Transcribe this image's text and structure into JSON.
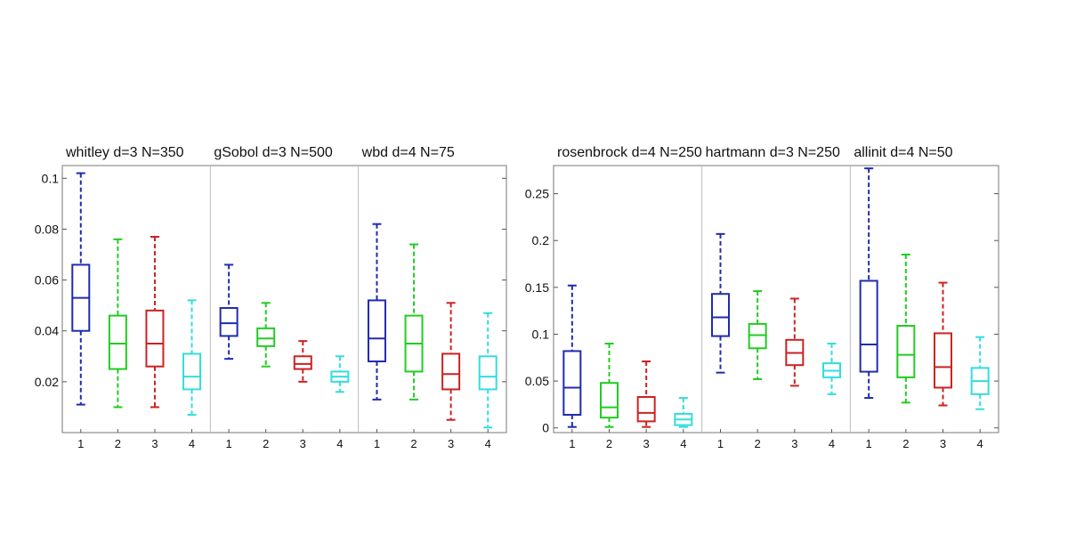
{
  "chart_data": [
    {
      "type": "boxplot",
      "ylim": [
        0,
        0.105
      ],
      "yticks": [
        "0.02",
        "0.04",
        "0.06",
        "0.08",
        "0.1"
      ],
      "yticks_values": [
        0.02,
        0.04,
        0.06,
        0.08,
        0.1
      ],
      "categories": [
        "1",
        "2",
        "3",
        "4"
      ],
      "colors": [
        "#1f2bb0",
        "#22cc22",
        "#cc2222",
        "#33dddd"
      ],
      "panels": [
        {
          "title": "whitley d=3 N=350",
          "boxes": [
            {
              "min": 0.011,
              "q1": 0.04,
              "median": 0.053,
              "q3": 0.066,
              "max": 0.102
            },
            {
              "min": 0.01,
              "q1": 0.025,
              "median": 0.035,
              "q3": 0.046,
              "max": 0.076
            },
            {
              "min": 0.01,
              "q1": 0.026,
              "median": 0.035,
              "q3": 0.048,
              "max": 0.077
            },
            {
              "min": 0.007,
              "q1": 0.017,
              "median": 0.022,
              "q3": 0.031,
              "max": 0.052
            }
          ]
        },
        {
          "title": "gSobol d=3 N=500",
          "boxes": [
            {
              "min": 0.029,
              "q1": 0.038,
              "median": 0.043,
              "q3": 0.049,
              "max": 0.066
            },
            {
              "min": 0.026,
              "q1": 0.034,
              "median": 0.037,
              "q3": 0.041,
              "max": 0.051
            },
            {
              "min": 0.02,
              "q1": 0.025,
              "median": 0.027,
              "q3": 0.03,
              "max": 0.036
            },
            {
              "min": 0.016,
              "q1": 0.02,
              "median": 0.022,
              "q3": 0.024,
              "max": 0.03
            }
          ]
        },
        {
          "title": "wbd d=4 N=75",
          "boxes": [
            {
              "min": 0.013,
              "q1": 0.028,
              "median": 0.037,
              "q3": 0.052,
              "max": 0.082
            },
            {
              "min": 0.013,
              "q1": 0.024,
              "median": 0.035,
              "q3": 0.046,
              "max": 0.074
            },
            {
              "min": 0.005,
              "q1": 0.017,
              "median": 0.023,
              "q3": 0.031,
              "max": 0.051
            },
            {
              "min": 0.002,
              "q1": 0.017,
              "median": 0.022,
              "q3": 0.03,
              "max": 0.047
            }
          ]
        }
      ]
    },
    {
      "type": "boxplot",
      "ylim": [
        -0.005,
        0.28
      ],
      "yticks": [
        "0",
        "0.05",
        "0.1",
        "0.15",
        "0.2",
        "0.25"
      ],
      "yticks_values": [
        0,
        0.05,
        0.1,
        0.15,
        0.2,
        0.25
      ],
      "categories": [
        "1",
        "2",
        "3",
        "4"
      ],
      "colors": [
        "#1f2bb0",
        "#22cc22",
        "#cc2222",
        "#33dddd"
      ],
      "panels": [
        {
          "title": "rosenbrock d=4 N=250",
          "boxes": [
            {
              "min": 0.001,
              "q1": 0.014,
              "median": 0.043,
              "q3": 0.082,
              "max": 0.152
            },
            {
              "min": 0.001,
              "q1": 0.011,
              "median": 0.022,
              "q3": 0.048,
              "max": 0.09
            },
            {
              "min": 0.001,
              "q1": 0.007,
              "median": 0.016,
              "q3": 0.033,
              "max": 0.071
            },
            {
              "min": 0.001,
              "q1": 0.003,
              "median": 0.009,
              "q3": 0.015,
              "max": 0.032
            }
          ]
        },
        {
          "title": "hartmann d=3 N=250",
          "boxes": [
            {
              "min": 0.059,
              "q1": 0.098,
              "median": 0.118,
              "q3": 0.143,
              "max": 0.207
            },
            {
              "min": 0.052,
              "q1": 0.085,
              "median": 0.099,
              "q3": 0.111,
              "max": 0.146
            },
            {
              "min": 0.045,
              "q1": 0.067,
              "median": 0.08,
              "q3": 0.094,
              "max": 0.138
            },
            {
              "min": 0.036,
              "q1": 0.054,
              "median": 0.061,
              "q3": 0.069,
              "max": 0.09
            }
          ]
        },
        {
          "title": "allinit d=4 N=50",
          "boxes": [
            {
              "min": 0.032,
              "q1": 0.06,
              "median": 0.089,
              "q3": 0.157,
              "max": 0.277
            },
            {
              "min": 0.027,
              "q1": 0.054,
              "median": 0.078,
              "q3": 0.109,
              "max": 0.185
            },
            {
              "min": 0.024,
              "q1": 0.043,
              "median": 0.065,
              "q3": 0.101,
              "max": 0.155
            },
            {
              "min": 0.02,
              "q1": 0.036,
              "median": 0.05,
              "q3": 0.064,
              "max": 0.097
            }
          ]
        }
      ]
    }
  ]
}
